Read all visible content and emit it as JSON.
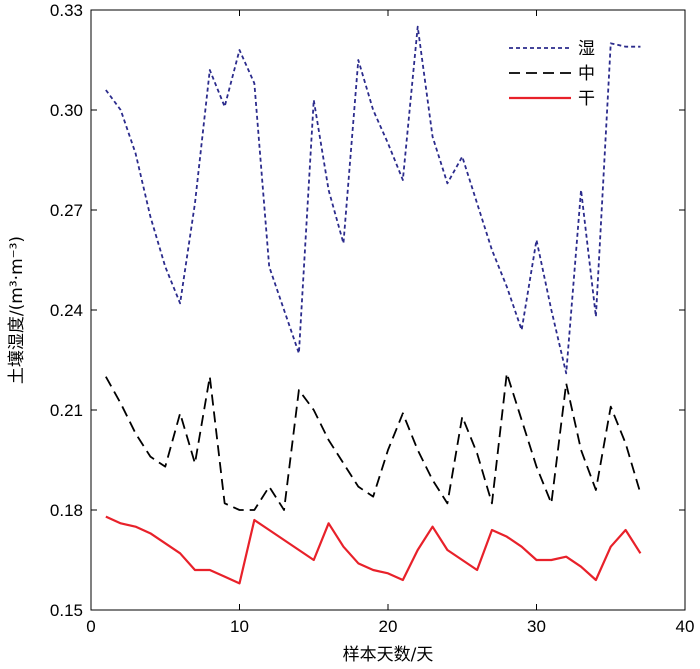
{
  "chart_data": {
    "type": "line",
    "xlabel": "样本天数/天",
    "ylabel": "土壤湿度/(m³·m⁻³)",
    "xlim": [
      0,
      40
    ],
    "ylim": [
      0.15,
      0.33
    ],
    "xticks": [
      0,
      10,
      20,
      30,
      40
    ],
    "yticks": [
      0.15,
      0.18,
      0.21,
      0.24,
      0.27,
      0.3,
      0.33
    ],
    "xtick_labels": [
      "0",
      "10",
      "20",
      "30",
      "40"
    ],
    "ytick_labels": [
      "0.15",
      "0.18",
      "0.21",
      "0.24",
      "0.27",
      "0.30",
      "0.33"
    ],
    "grid": false,
    "legend_position": "top-right",
    "x": [
      1,
      2,
      3,
      4,
      5,
      6,
      7,
      8,
      9,
      10,
      11,
      12,
      13,
      14,
      15,
      16,
      17,
      18,
      19,
      20,
      21,
      22,
      23,
      24,
      25,
      26,
      27,
      28,
      29,
      30,
      31,
      32,
      33,
      34,
      35,
      36,
      37
    ],
    "series": [
      {
        "name": "湿",
        "color": "#2b2b8c",
        "dash": "dotted",
        "values": [
          0.306,
          0.3,
          0.287,
          0.268,
          0.253,
          0.242,
          0.272,
          0.312,
          0.301,
          0.318,
          0.308,
          0.253,
          0.24,
          0.227,
          0.303,
          0.276,
          0.26,
          0.315,
          0.3,
          0.29,
          0.279,
          0.325,
          0.292,
          0.278,
          0.286,
          0.272,
          0.258,
          0.247,
          0.234,
          0.261,
          0.24,
          0.221,
          0.276,
          0.238,
          0.32,
          0.319,
          0.319
        ]
      },
      {
        "name": "中",
        "color": "#000000",
        "dash": "dashed",
        "values": [
          0.22,
          0.212,
          0.203,
          0.196,
          0.193,
          0.209,
          0.194,
          0.22,
          0.182,
          0.18,
          0.18,
          0.187,
          0.18,
          0.216,
          0.21,
          0.201,
          0.194,
          0.187,
          0.184,
          0.198,
          0.209,
          0.198,
          0.189,
          0.182,
          0.208,
          0.197,
          0.182,
          0.221,
          0.207,
          0.193,
          0.182,
          0.218,
          0.198,
          0.186,
          0.211,
          0.2,
          0.185
        ]
      },
      {
        "name": "干",
        "color": "#e8212a",
        "dash": "solid",
        "values": [
          0.178,
          0.176,
          0.175,
          0.173,
          0.17,
          0.167,
          0.162,
          0.162,
          0.16,
          0.158,
          0.177,
          0.174,
          0.171,
          0.168,
          0.165,
          0.176,
          0.169,
          0.164,
          0.162,
          0.161,
          0.159,
          0.168,
          0.175,
          0.168,
          0.165,
          0.162,
          0.174,
          0.172,
          0.169,
          0.165,
          0.165,
          0.166,
          0.163,
          0.159,
          0.169,
          0.174,
          0.167
        ]
      }
    ]
  }
}
